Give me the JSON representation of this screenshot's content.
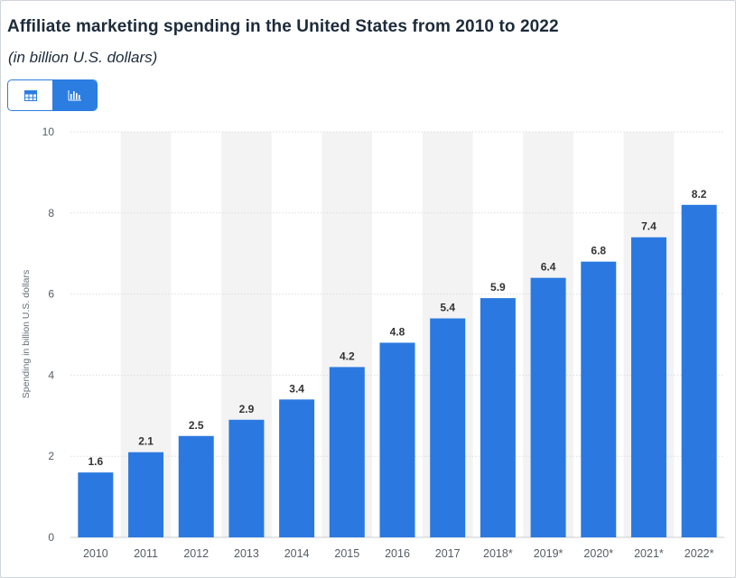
{
  "header": {
    "title": "Affiliate marketing spending in the United States from 2010 to 2022",
    "subtitle": "(in billion U.S. dollars)"
  },
  "view_toggle": {
    "table_icon": "table-icon",
    "chart_icon": "bar-chart-icon",
    "active": "chart"
  },
  "colors": {
    "bar": "#2b79e0",
    "band": "#f3f3f3",
    "grid": "#d9dde2",
    "tick_text": "#555d66",
    "label_text": "#333333"
  },
  "chart_data": {
    "type": "bar",
    "title": "Affiliate marketing spending in the United States from 2010 to 2022",
    "subtitle": "(in billion U.S. dollars)",
    "xlabel": "",
    "ylabel": "Spending in billion U.S. dollars",
    "categories": [
      "2010",
      "2011",
      "2012",
      "2013",
      "2014",
      "2015",
      "2016",
      "2017",
      "2018*",
      "2019*",
      "2020*",
      "2021*",
      "2022*"
    ],
    "values": [
      1.6,
      2.1,
      2.5,
      2.9,
      3.4,
      4.2,
      4.8,
      5.4,
      5.9,
      6.4,
      6.8,
      7.4,
      8.2
    ],
    "value_labels": [
      "1.6",
      "2.1",
      "2.5",
      "2.9",
      "3.4",
      "4.2",
      "4.8",
      "5.4",
      "5.9",
      "6.4",
      "6.8",
      "7.4",
      "8.2"
    ],
    "ylim": [
      0,
      10
    ],
    "yticks": [
      0,
      2,
      4,
      6,
      8,
      10
    ],
    "grid": true,
    "legend": "none"
  }
}
